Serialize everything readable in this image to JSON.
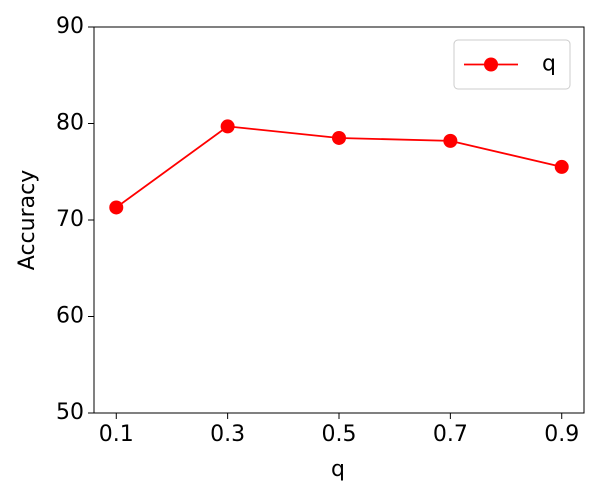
{
  "chart_data": {
    "type": "line",
    "x_label": "q",
    "y_label": "Accuracy",
    "x": [
      0.1,
      0.3,
      0.5,
      0.7,
      0.9
    ],
    "series": [
      {
        "name": "q",
        "color": "#ff0000",
        "values": [
          71.3,
          79.7,
          78.5,
          78.2,
          75.5
        ]
      }
    ],
    "xlim": [
      0.06,
      0.94
    ],
    "xticks": [
      0.1,
      0.3,
      0.5,
      0.7,
      0.9
    ],
    "ylim": [
      50,
      90
    ],
    "yticks": [
      50,
      60,
      70,
      80,
      90
    ],
    "grid": false,
    "legend": "upper right"
  }
}
